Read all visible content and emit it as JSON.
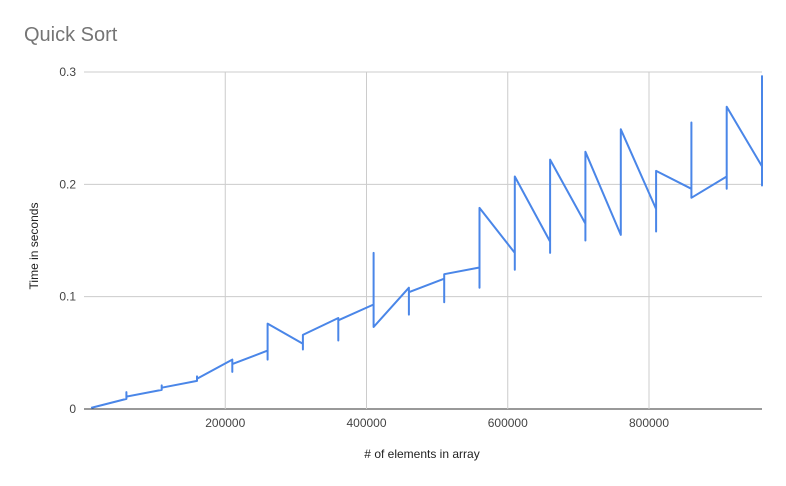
{
  "chart_data": {
    "type": "line",
    "title": "Quick Sort",
    "xlabel": "# of elements in array",
    "ylabel": "Time in seconds",
    "xlim": [
      0,
      960000
    ],
    "ylim": [
      0,
      0.3
    ],
    "xticks": [
      200000,
      400000,
      600000,
      800000
    ],
    "xtick_labels": [
      "200000",
      "400000",
      "600000",
      "800000"
    ],
    "yticks": [
      0,
      0.1,
      0.2,
      0.3
    ],
    "ytick_labels": [
      "0",
      "0.1",
      "0.2",
      "0.3"
    ],
    "grid": true,
    "series_color": "#4a86e8",
    "x": [
      10000,
      60000,
      110000,
      160000,
      210000,
      260000,
      310000,
      360000,
      410000,
      460000,
      510000,
      560000,
      610000,
      660000,
      710000,
      760000,
      810000,
      860000,
      910000,
      960000
    ],
    "series": [
      {
        "runs": [
          [
            0.001,
            0.009,
            0.017,
            0.025,
            0.044,
            0.052,
            0.058,
            0.081,
            0.093,
            0.108,
            0.116,
            0.126,
            0.139,
            0.149,
            0.165,
            0.155,
            0.178,
            0.196,
            0.207,
            0.216
          ],
          [
            0.001,
            0.015,
            0.021,
            0.029,
            0.033,
            0.044,
            0.053,
            0.061,
            0.139,
            0.084,
            0.095,
            0.108,
            0.124,
            0.139,
            0.15,
            0.184,
            0.158,
            0.255,
            0.196,
            0.199
          ],
          [
            0.001,
            0.011,
            0.019,
            0.027,
            0.04,
            0.076,
            0.066,
            0.079,
            0.073,
            0.104,
            0.12,
            0.179,
            0.207,
            0.222,
            0.229,
            0.249,
            0.212,
            0.188,
            0.269,
            0.297
          ]
        ]
      }
    ]
  }
}
